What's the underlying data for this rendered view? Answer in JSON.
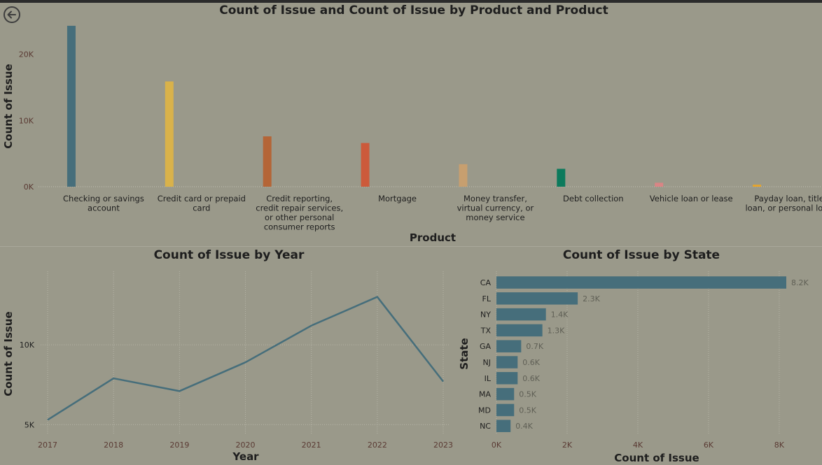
{
  "navigation": {
    "back_icon": "arrow-left-circle-icon"
  },
  "chart_data": [
    {
      "type": "bar",
      "title": "Count of Issue and Count of Issue by Product and Product",
      "xlabel": "Product",
      "ylabel": "Count of Issue",
      "ylim": [
        0,
        24500
      ],
      "yticks": [
        0,
        10000,
        20000
      ],
      "ytick_labels": [
        "0K",
        "10K",
        "20K"
      ],
      "grid": false,
      "categories": [
        "Checking or savings account",
        "Credit card or prepaid card",
        "Credit reporting, credit repair services, or other personal consumer reports",
        "Mortgage",
        "Money transfer, virtual currency, or money service",
        "Debt collection",
        "Vehicle loan or lease",
        "Payday loan, title loan, or personal loan"
      ],
      "category_labels": [
        [
          "Checking or savings",
          "account"
        ],
        [
          "Credit card or prepaid",
          "card"
        ],
        [
          "Credit reporting,",
          "credit repair services,",
          "or other personal",
          "consumer reports"
        ],
        [
          "Mortgage"
        ],
        [
          "Money transfer,",
          "virtual currency, or",
          "money service"
        ],
        [
          "Debt collection"
        ],
        [
          "Vehicle loan or lease"
        ],
        [
          "Payday loan, title",
          "loan, or personal loan"
        ]
      ],
      "values": [
        24300,
        15900,
        7600,
        6600,
        3400,
        2700,
        600,
        300
      ],
      "colors": [
        "#466e7b",
        "#d9b24a",
        "#b46537",
        "#cc5a3b",
        "#c79f6f",
        "#0c7a5c",
        "#d98585",
        "#e8a52a"
      ]
    },
    {
      "type": "line",
      "title": "Count of Issue by Year",
      "xlabel": "Year",
      "ylabel": "Count of Issue",
      "x": [
        "2017",
        "2018",
        "2019",
        "2020",
        "2021",
        "2022",
        "2023"
      ],
      "values": [
        5300,
        7900,
        7100,
        8900,
        11200,
        13000,
        7700
      ],
      "ylim": [
        4400,
        14600
      ],
      "yticks": [
        5000,
        10000
      ],
      "ytick_labels": [
        "5K",
        "10K"
      ],
      "grid": true,
      "color": "#466e7b"
    },
    {
      "type": "bar",
      "orientation": "horizontal",
      "title": "Count of Issue by State",
      "xlabel": "Count of Issue",
      "ylabel": "State",
      "categories": [
        "CA",
        "FL",
        "NY",
        "TX",
        "GA",
        "NJ",
        "IL",
        "MA",
        "MD",
        "NC"
      ],
      "values": [
        8200,
        2300,
        1400,
        1300,
        700,
        600,
        600,
        500,
        500,
        400
      ],
      "data_labels": [
        "8.2K",
        "2.3K",
        "1.4K",
        "1.3K",
        "0.7K",
        "0.6K",
        "0.6K",
        "0.5K",
        "0.5K",
        "0.4K"
      ],
      "xlim": [
        0,
        8200
      ],
      "xticks": [
        0,
        2000,
        4000,
        6000,
        8000
      ],
      "xtick_labels": [
        "0K",
        "2K",
        "4K",
        "6K",
        "8K"
      ],
      "grid": true,
      "color": "#466e7b"
    }
  ]
}
